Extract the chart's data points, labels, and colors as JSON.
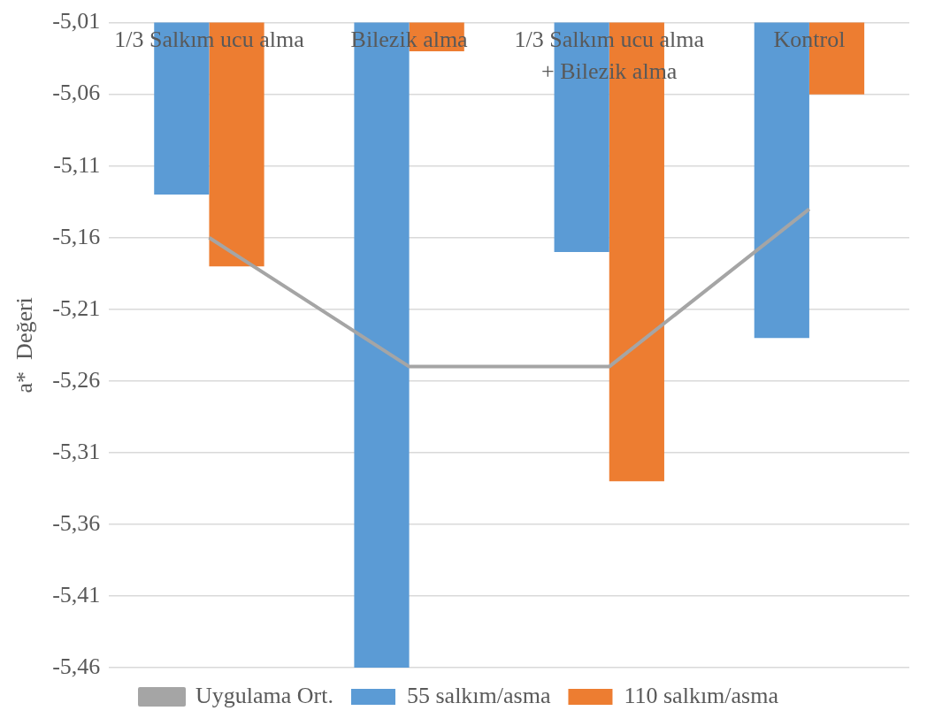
{
  "chart_data": {
    "type": "bar",
    "ylabel": "a*  Değeri",
    "categories": [
      "1/3 Salkım ucu alma",
      "Bilezik alma",
      "1/3 Salkım ucu alma + Bilezik alma",
      "Kontrol"
    ],
    "series": [
      {
        "name": "55 salkım/asma",
        "color": "#5b9bd5",
        "values": [
          -5.13,
          -5.46,
          -5.17,
          -5.23
        ]
      },
      {
        "name": "110 salkım/asma",
        "color": "#ed7d31",
        "values": [
          -5.18,
          -5.03,
          -5.33,
          -5.06
        ]
      },
      {
        "name": "Uygulama Ort.",
        "type": "line",
        "color": "#a5a5a5",
        "values": [
          -5.16,
          -5.25,
          -5.25,
          -5.14
        ]
      }
    ],
    "ylim": [
      -5.46,
      -5.01
    ],
    "yticks": [
      {
        "value": -5.01,
        "label": "-5,01"
      },
      {
        "value": -5.06,
        "label": "-5,06"
      },
      {
        "value": -5.11,
        "label": "-5,11"
      },
      {
        "value": -5.16,
        "label": "-5,16"
      },
      {
        "value": -5.21,
        "label": "-5,21"
      },
      {
        "value": -5.26,
        "label": "-5,26"
      },
      {
        "value": -5.31,
        "label": "-5,31"
      },
      {
        "value": -5.36,
        "label": "-5,36"
      },
      {
        "value": -5.41,
        "label": "-5,41"
      },
      {
        "value": -5.46,
        "label": "-5,46"
      }
    ],
    "grid": "y",
    "legend": "bottom",
    "marker": "none",
    "line_style": "solid"
  }
}
